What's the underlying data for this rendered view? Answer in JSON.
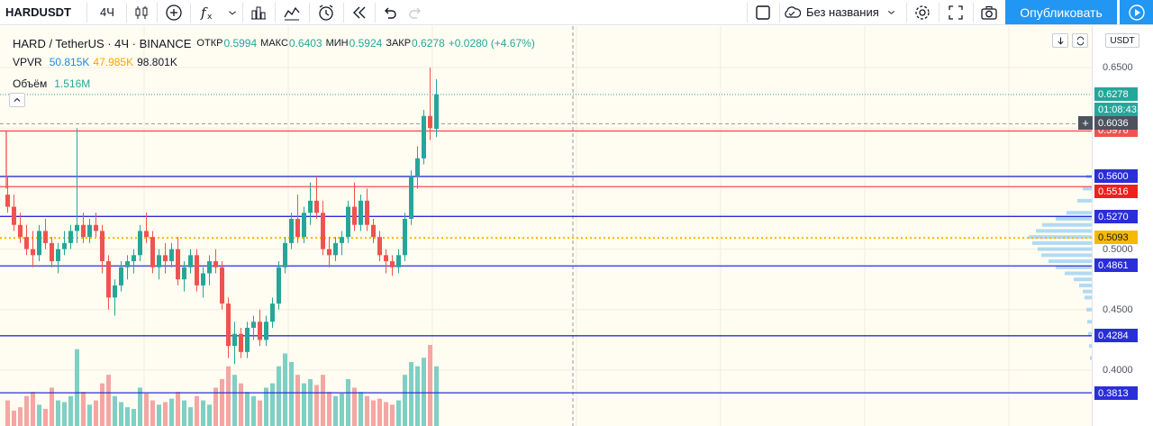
{
  "toolbar": {
    "symbol": "HARDUSDT",
    "interval": "4Ч",
    "layout_name": "Без названия",
    "publish_label": "Опубликовать",
    "icons": [
      "candles-icon",
      "add-indicator-icon",
      "indicators-fx-icon",
      "chevron-down-icon",
      "compare-icon",
      "templates-icon",
      "alert-icon",
      "replay-icon",
      "undo-icon",
      "redo-icon",
      "rectangle-icon",
      "cloud-icon",
      "gear-icon",
      "fullscreen-icon",
      "camera-icon",
      "play-icon"
    ]
  },
  "legend": {
    "title": "HARD / TetherUS · 4Ч · BINANCE",
    "open_label": "ОТКР",
    "open_value": "0.5994",
    "high_label": "МАКС",
    "high_value": "0.6403",
    "low_label": "МИН",
    "low_value": "0.5924",
    "close_label": "ЗАКР",
    "close_value": "0.6278",
    "change": "+0.0280 (+4.67%)",
    "vpvr_label": "VPVR",
    "vpvr_values": [
      "50.815K",
      "47.985K",
      "98.801K"
    ],
    "volume_label": "Объём",
    "volume_value": "1.516M"
  },
  "axis": {
    "currency": "USDT",
    "ticks": [
      "0.6500",
      "0.5000",
      "0.4500",
      "0.4000"
    ],
    "badges": {
      "last_price": "0.6278",
      "countdown": "01:08:43",
      "crosshair": "0.6036",
      "hidden_red": "0.5976",
      "level_5600": "0.5600",
      "level_5516": "0.5516",
      "level_5270": "0.5270",
      "level_5093": "0.5093",
      "level_4861": "0.4861",
      "level_4284": "0.4284",
      "level_3813": "0.3813"
    }
  },
  "colors": {
    "up": "#26a69a",
    "down": "#ef5350",
    "blue_line": "#2a2ed8",
    "red_line": "#ef5350",
    "poc": "#f7b900",
    "accent": "#2196f3"
  },
  "chart_data": {
    "type": "candlestick",
    "symbol": "HARD / TetherUS",
    "timeframe": "4Ч",
    "exchange": "BINANCE",
    "horizontal_levels": [
      0.5976,
      0.56,
      0.5516,
      0.527,
      0.4861,
      0.4284,
      0.3813
    ],
    "poc": 0.5093,
    "last_price": 0.6278,
    "candles": [
      [
        0.545,
        0.56,
        0.53,
        0.535
      ],
      [
        0.535,
        0.545,
        0.515,
        0.52
      ],
      [
        0.52,
        0.53,
        0.505,
        0.51
      ],
      [
        0.51,
        0.52,
        0.495,
        0.5
      ],
      [
        0.5,
        0.515,
        0.485,
        0.495
      ],
      [
        0.495,
        0.52,
        0.49,
        0.515
      ],
      [
        0.515,
        0.525,
        0.5,
        0.505
      ],
      [
        0.505,
        0.51,
        0.485,
        0.49
      ],
      [
        0.49,
        0.505,
        0.48,
        0.5
      ],
      [
        0.5,
        0.515,
        0.495,
        0.505
      ],
      [
        0.505,
        0.52,
        0.5,
        0.515
      ],
      [
        0.515,
        0.6,
        0.505,
        0.52
      ],
      [
        0.52,
        0.53,
        0.505,
        0.51
      ],
      [
        0.51,
        0.525,
        0.505,
        0.52
      ],
      [
        0.52,
        0.53,
        0.51,
        0.515
      ],
      [
        0.515,
        0.52,
        0.48,
        0.49
      ],
      [
        0.49,
        0.495,
        0.45,
        0.46
      ],
      [
        0.46,
        0.475,
        0.445,
        0.47
      ],
      [
        0.47,
        0.49,
        0.465,
        0.485
      ],
      [
        0.485,
        0.495,
        0.475,
        0.49
      ],
      [
        0.49,
        0.5,
        0.48,
        0.495
      ],
      [
        0.495,
        0.52,
        0.49,
        0.515
      ],
      [
        0.515,
        0.53,
        0.505,
        0.51
      ],
      [
        0.51,
        0.515,
        0.48,
        0.485
      ],
      [
        0.485,
        0.5,
        0.475,
        0.495
      ],
      [
        0.495,
        0.505,
        0.48,
        0.49
      ],
      [
        0.49,
        0.505,
        0.485,
        0.5
      ],
      [
        0.5,
        0.51,
        0.47,
        0.475
      ],
      [
        0.475,
        0.49,
        0.465,
        0.485
      ],
      [
        0.485,
        0.5,
        0.48,
        0.495
      ],
      [
        0.495,
        0.5,
        0.465,
        0.47
      ],
      [
        0.47,
        0.485,
        0.46,
        0.48
      ],
      [
        0.48,
        0.495,
        0.47,
        0.49
      ],
      [
        0.49,
        0.5,
        0.48,
        0.485
      ],
      [
        0.485,
        0.49,
        0.45,
        0.455
      ],
      [
        0.455,
        0.46,
        0.41,
        0.42
      ],
      [
        0.42,
        0.44,
        0.405,
        0.43
      ],
      [
        0.43,
        0.435,
        0.41,
        0.415
      ],
      [
        0.415,
        0.44,
        0.41,
        0.435
      ],
      [
        0.435,
        0.445,
        0.425,
        0.44
      ],
      [
        0.44,
        0.45,
        0.42,
        0.425
      ],
      [
        0.425,
        0.445,
        0.42,
        0.44
      ],
      [
        0.44,
        0.46,
        0.435,
        0.455
      ],
      [
        0.455,
        0.49,
        0.45,
        0.485
      ],
      [
        0.485,
        0.51,
        0.48,
        0.505
      ],
      [
        0.505,
        0.53,
        0.5,
        0.525
      ],
      [
        0.525,
        0.545,
        0.505,
        0.51
      ],
      [
        0.51,
        0.535,
        0.505,
        0.53
      ],
      [
        0.53,
        0.555,
        0.52,
        0.54
      ],
      [
        0.54,
        0.56,
        0.525,
        0.53
      ],
      [
        0.53,
        0.54,
        0.495,
        0.5
      ],
      [
        0.5,
        0.51,
        0.485,
        0.495
      ],
      [
        0.495,
        0.51,
        0.49,
        0.505
      ],
      [
        0.505,
        0.515,
        0.495,
        0.51
      ],
      [
        0.51,
        0.54,
        0.505,
        0.535
      ],
      [
        0.535,
        0.555,
        0.515,
        0.52
      ],
      [
        0.52,
        0.545,
        0.515,
        0.54
      ],
      [
        0.54,
        0.55,
        0.515,
        0.52
      ],
      [
        0.52,
        0.525,
        0.505,
        0.51
      ],
      [
        0.51,
        0.515,
        0.49,
        0.495
      ],
      [
        0.495,
        0.5,
        0.48,
        0.49
      ],
      [
        0.49,
        0.495,
        0.478,
        0.485
      ],
      [
        0.485,
        0.5,
        0.48,
        0.495
      ],
      [
        0.495,
        0.53,
        0.49,
        0.525
      ],
      [
        0.525,
        0.565,
        0.52,
        0.56
      ],
      [
        0.56,
        0.585,
        0.55,
        0.575
      ],
      [
        0.575,
        0.615,
        0.57,
        0.61
      ],
      [
        0.61,
        0.65,
        0.59,
        0.6
      ],
      [
        0.5994,
        0.6403,
        0.5924,
        0.6278
      ]
    ],
    "volumes": [
      30,
      18,
      22,
      35,
      40,
      25,
      20,
      45,
      30,
      28,
      35,
      90,
      40,
      25,
      30,
      50,
      60,
      35,
      28,
      22,
      20,
      45,
      38,
      30,
      25,
      28,
      32,
      40,
      30,
      22,
      35,
      30,
      25,
      45,
      55,
      70,
      60,
      50,
      40,
      35,
      30,
      45,
      50,
      70,
      85,
      75,
      60,
      50,
      55,
      48,
      60,
      40,
      35,
      38,
      55,
      45,
      40,
      35,
      30,
      32,
      28,
      25,
      30,
      60,
      75,
      70,
      80,
      95,
      70
    ]
  }
}
